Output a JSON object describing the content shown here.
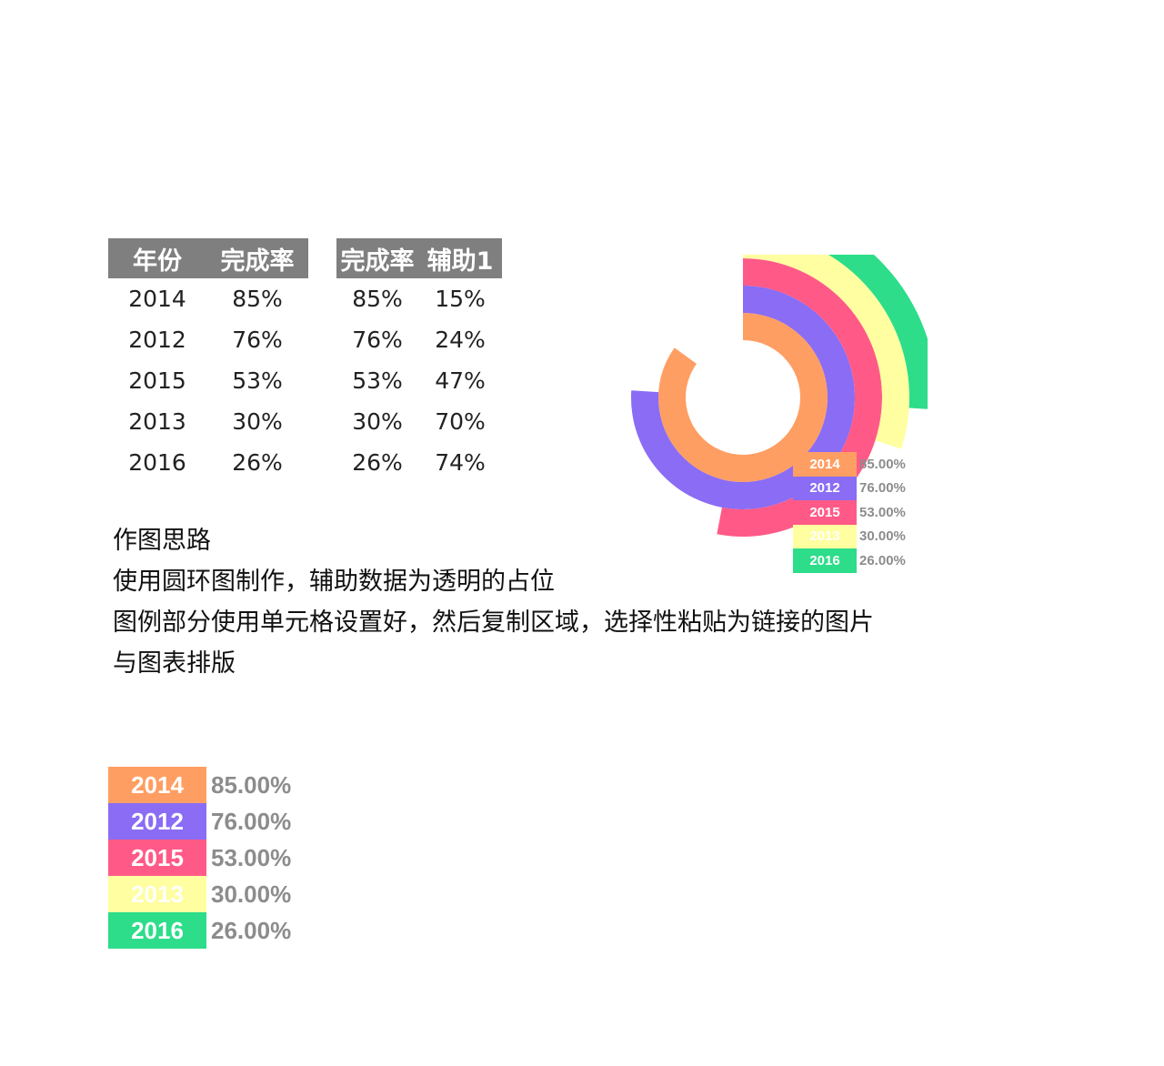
{
  "table1": {
    "headers": [
      "年份",
      "完成率"
    ],
    "rows": [
      [
        "2014",
        "85%"
      ],
      [
        "2012",
        "76%"
      ],
      [
        "2015",
        "53%"
      ],
      [
        "2013",
        "30%"
      ],
      [
        "2016",
        "26%"
      ]
    ]
  },
  "table2": {
    "headers": [
      "完成率",
      "辅助1"
    ],
    "rows": [
      [
        "85%",
        "15%"
      ],
      [
        "76%",
        "24%"
      ],
      [
        "53%",
        "47%"
      ],
      [
        "30%",
        "70%"
      ],
      [
        "26%",
        "74%"
      ]
    ]
  },
  "notes": {
    "title": "作图思路",
    "line1": "使用圆环图制作，辅助数据为透明的占位",
    "line2": "图例部分使用单元格设置好，然后复制区域，选择性粘贴为链接的图片",
    "line3": "与图表排版"
  },
  "legend": [
    {
      "year": "2014",
      "value": "85.00%",
      "color": "#FF9E63"
    },
    {
      "year": "2012",
      "value": "76.00%",
      "color": "#8A6CF5"
    },
    {
      "year": "2015",
      "value": "53.00%",
      "color": "#FF5A87"
    },
    {
      "year": "2013",
      "value": "30.00%",
      "color": "#FFFEA0"
    },
    {
      "year": "2016",
      "value": "26.00%",
      "color": "#2DDD8A"
    }
  ],
  "chart_data": {
    "type": "doughnut",
    "categories": [
      "2014",
      "2012",
      "2015",
      "2013",
      "2016"
    ],
    "series": [
      {
        "values": [
          85,
          76,
          53,
          30,
          26
        ]
      },
      {
        "values": [
          15,
          24,
          47,
          70,
          74
        ]
      }
    ],
    "colors": [
      "#FF9E63",
      "#8A6CF5",
      "#FF5A87",
      "#FFFEA0",
      "#2DDD8A"
    ],
    "helper_series_transparent": true
  }
}
